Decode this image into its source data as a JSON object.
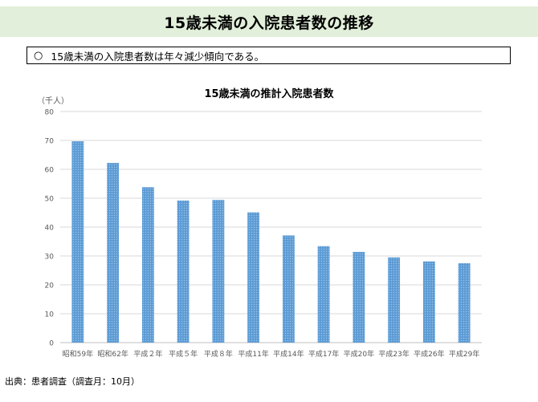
{
  "slide": {
    "title": "15歳未満の入院患者数の推移",
    "summary_mark": "○",
    "summary_text": "15歳未満の入院患者数は年々減少傾向である。",
    "source": "出典：患者調査（調査月：10月）"
  },
  "colors": {
    "bar": "#5b9bd5",
    "title_band": "#e2efda",
    "grid": "#d9d9d9",
    "axis_text": "#595959"
  },
  "chart_data": {
    "type": "bar",
    "title": "15歳未満の推計入院患者数",
    "unit_label": "（千人）",
    "xlabel": "",
    "ylabel": "",
    "ylim": [
      0,
      80
    ],
    "yticks": [
      0,
      10,
      20,
      30,
      40,
      50,
      60,
      70,
      80
    ],
    "grid": true,
    "categories": [
      "昭和59年",
      "昭和62年",
      "平成２年",
      "平成５年",
      "平成８年",
      "平成11年",
      "平成14年",
      "平成17年",
      "平成20年",
      "平成23年",
      "平成26年",
      "平成29年"
    ],
    "values": [
      69.7,
      62.2,
      53.8,
      49.2,
      49.4,
      45.1,
      37.1,
      33.4,
      31.4,
      29.5,
      28.1,
      27.5
    ]
  }
}
